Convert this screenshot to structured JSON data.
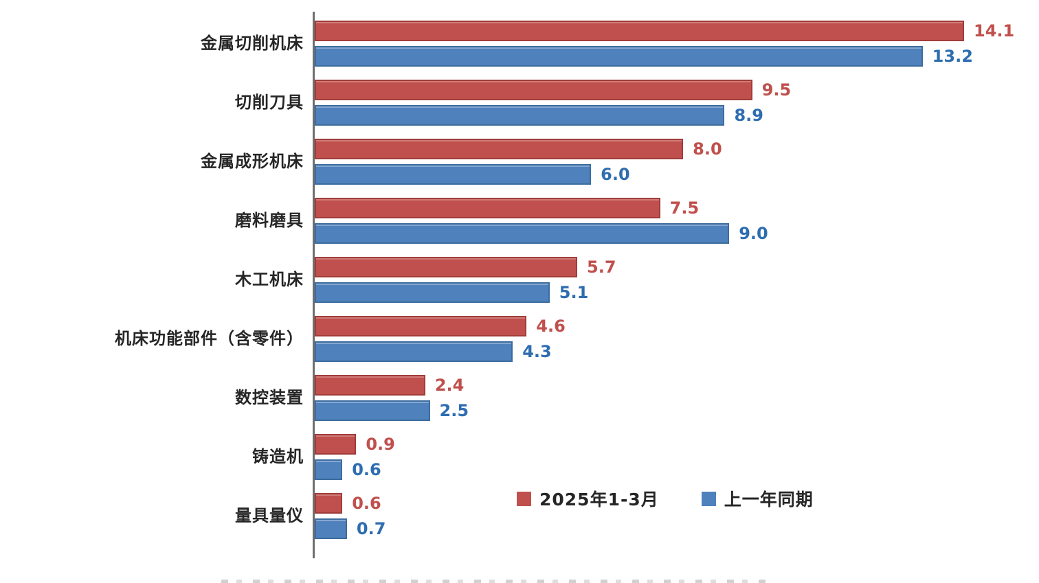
{
  "chart_data": {
    "type": "bar",
    "orientation": "horizontal",
    "title": "",
    "categories": [
      "金属切削机床",
      "切削刀具",
      "金属成形机床",
      "磨料磨具",
      "木工机床",
      "机床功能部件（含零件）",
      "数控装置",
      "铸造机",
      "量具量仪"
    ],
    "series": [
      {
        "name": "2025年1-3月",
        "values": [
          14.1,
          9.5,
          8.0,
          7.5,
          5.7,
          4.6,
          2.4,
          0.9,
          0.6
        ],
        "color": "#c0504d",
        "border_color": "#a03c3a",
        "label_color": "#c0504d"
      },
      {
        "name": "上一年同期",
        "values": [
          13.2,
          8.9,
          6.0,
          9.0,
          5.1,
          4.3,
          2.5,
          0.6,
          0.7
        ],
        "color": "#4f81bd",
        "border_color": "#3c6c9e",
        "label_color": "#2e6db0"
      }
    ],
    "xlim": [
      0,
      14.1
    ],
    "grid": false,
    "value_labels": true,
    "value_label_decimals": 1,
    "legend_position": "inside bottom-right",
    "axis_color": "#6e6e6e"
  },
  "legend": {
    "items": [
      {
        "label": "2025年1-3月",
        "color": "#c0504d"
      },
      {
        "label": "上一年同期",
        "color": "#4f81bd"
      }
    ]
  }
}
